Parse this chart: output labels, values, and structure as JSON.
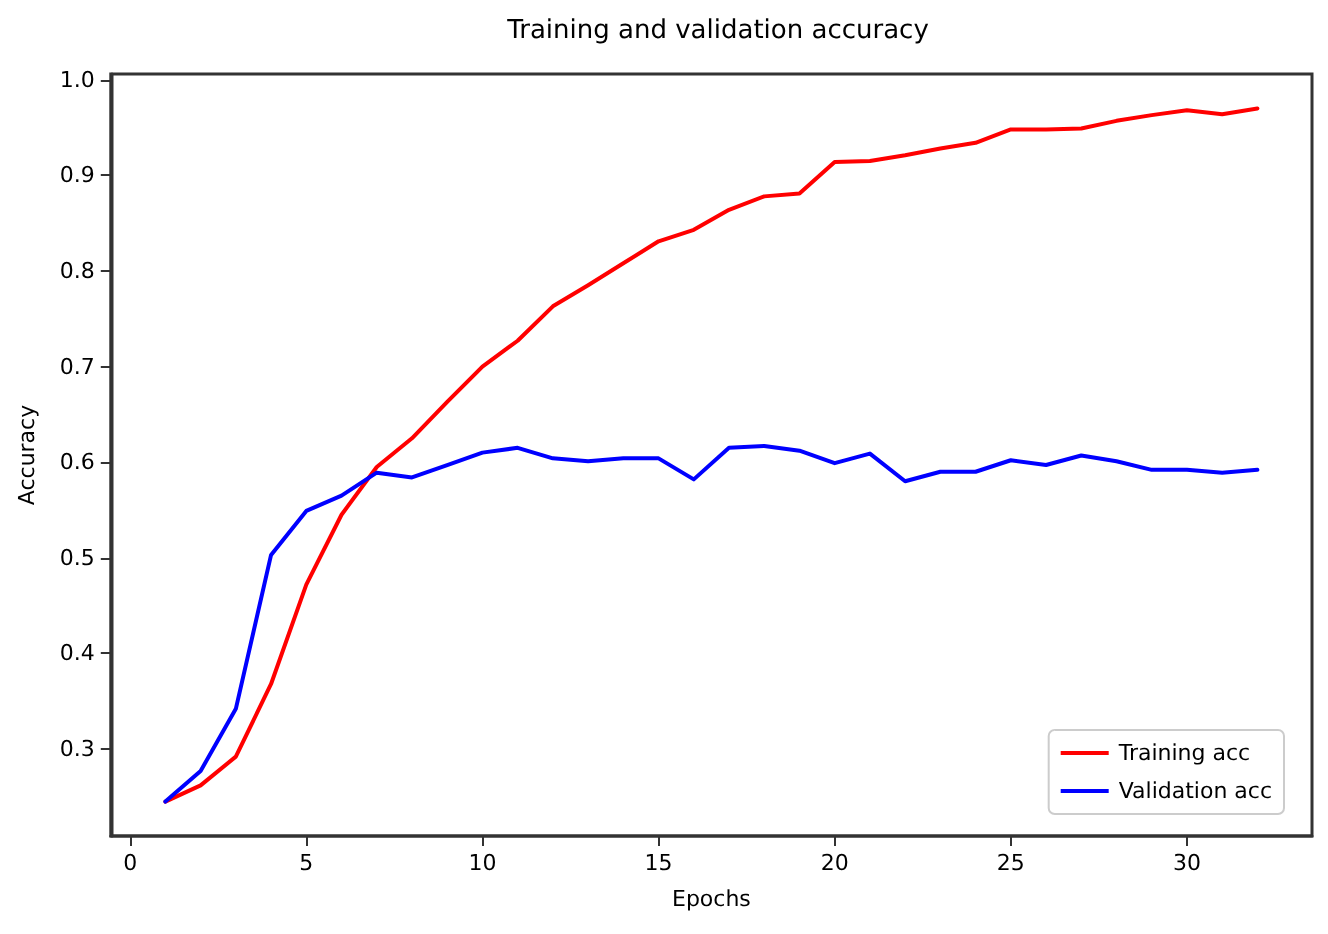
{
  "chart_data": {
    "type": "line",
    "title": "Training and validation accuracy",
    "xlabel": "Epochs",
    "ylabel": "Accuracy",
    "x": [
      1,
      2,
      3,
      4,
      5,
      6,
      7,
      8,
      9,
      10,
      11,
      12,
      13,
      14,
      15,
      16,
      17,
      18,
      19,
      20,
      21,
      22,
      23,
      24,
      25,
      26,
      27,
      28,
      29,
      30,
      31,
      32
    ],
    "series": [
      {
        "name": "Training acc",
        "color": "#ff0000",
        "values": [
          0.245,
          0.262,
          0.292,
          0.368,
          0.472,
          0.545,
          0.595,
          0.625,
          0.663,
          0.7,
          0.727,
          0.763,
          0.785,
          0.808,
          0.831,
          0.843,
          0.864,
          0.878,
          0.881,
          0.914,
          0.915,
          0.921,
          0.928,
          0.934,
          0.948,
          0.948,
          0.949,
          0.957,
          0.963,
          0.968,
          0.964,
          0.97
        ]
      },
      {
        "name": "Validation acc",
        "color": "#0000ff",
        "values": [
          0.245,
          0.277,
          0.342,
          0.503,
          0.549,
          0.565,
          0.589,
          0.584,
          0.597,
          0.61,
          0.615,
          0.604,
          0.601,
          0.604,
          0.604,
          0.582,
          0.615,
          0.617,
          0.612,
          0.599,
          0.609,
          0.58,
          0.59,
          0.59,
          0.602,
          0.597,
          0.607,
          0.601,
          0.592,
          0.592,
          0.589,
          0.592
        ]
      }
    ],
    "xlim": [
      -0.55,
      33.55
    ],
    "ylim": [
      0.209,
      1.006
    ],
    "xticks": [
      0,
      5,
      10,
      15,
      20,
      25,
      30
    ],
    "yticks": [
      0.3,
      0.4,
      0.5,
      0.6,
      0.7,
      0.8,
      0.9,
      {
        "value": 1.0,
        "label": "1.0"
      }
    ],
    "grid": false,
    "legend": "bottom right",
    "marker": "none",
    "line_style": "solid"
  }
}
